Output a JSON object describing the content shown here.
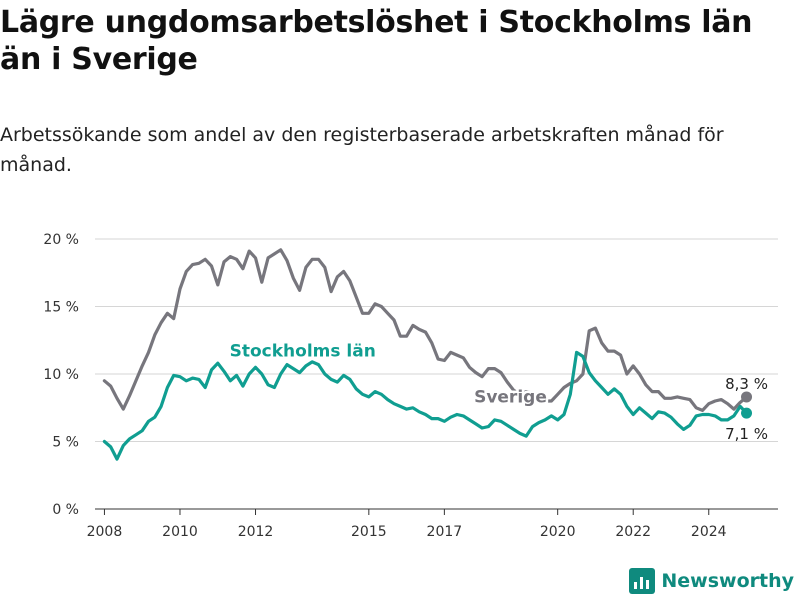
{
  "title": "Lägre ungdomsarbetslöshet i Stockholms län än i Sverige",
  "subtitle": "Arbetssökande som andel av den registerbaserade arbetskraften månad för månad.",
  "brand": {
    "name": "Newsworthy",
    "color": "#0f8a7e"
  },
  "chart_data": {
    "type": "line",
    "ylim": [
      0,
      20
    ],
    "yticks": [
      0,
      5,
      10,
      15,
      20
    ],
    "ytick_labels": [
      "0 %",
      "5 %",
      "10 %",
      "15 %",
      "20 %"
    ],
    "xlim": [
      "2007-10",
      "2025-11"
    ],
    "xtick_labels": [
      "2008",
      "2010",
      "2012",
      "2015",
      "2017",
      "2020",
      "2022",
      "2024"
    ],
    "xtick_dates": [
      "2008-01",
      "2010-01",
      "2012-01",
      "2015-01",
      "2017-01",
      "2020-01",
      "2022-01",
      "2024-01"
    ],
    "grid": true,
    "series": [
      {
        "name": "Sverige",
        "color": "#77767d",
        "end_label": "8,3 %",
        "x": [
          "2008-01",
          "2008-03",
          "2008-05",
          "2008-07",
          "2008-09",
          "2008-11",
          "2009-01",
          "2009-03",
          "2009-05",
          "2009-07",
          "2009-09",
          "2009-11",
          "2010-01",
          "2010-03",
          "2010-05",
          "2010-07",
          "2010-09",
          "2010-11",
          "2011-01",
          "2011-03",
          "2011-05",
          "2011-07",
          "2011-09",
          "2011-11",
          "2012-01",
          "2012-03",
          "2012-05",
          "2012-07",
          "2012-09",
          "2012-11",
          "2013-01",
          "2013-03",
          "2013-05",
          "2013-07",
          "2013-09",
          "2013-11",
          "2014-01",
          "2014-03",
          "2014-05",
          "2014-07",
          "2014-09",
          "2014-11",
          "2015-01",
          "2015-03",
          "2015-05",
          "2015-07",
          "2015-09",
          "2015-11",
          "2016-01",
          "2016-03",
          "2016-05",
          "2016-07",
          "2016-09",
          "2016-11",
          "2017-01",
          "2017-03",
          "2017-05",
          "2017-07",
          "2017-09",
          "2017-11",
          "2018-01",
          "2018-03",
          "2018-05",
          "2018-07",
          "2018-09",
          "2018-11",
          "2019-01",
          "2019-03",
          "2019-05",
          "2019-07",
          "2019-09",
          "2019-11",
          "2020-01",
          "2020-03",
          "2020-05",
          "2020-07",
          "2020-09",
          "2020-11",
          "2021-01",
          "2021-03",
          "2021-05",
          "2021-07",
          "2021-09",
          "2021-11",
          "2022-01",
          "2022-03",
          "2022-05",
          "2022-07",
          "2022-09",
          "2022-11",
          "2023-01",
          "2023-03",
          "2023-05",
          "2023-07",
          "2023-09",
          "2023-11",
          "2024-01",
          "2024-03",
          "2024-05",
          "2024-07",
          "2024-09",
          "2024-11",
          "2025-01"
        ],
        "y": [
          9.5,
          9.1,
          8.2,
          7.4,
          8.4,
          9.5,
          10.6,
          11.6,
          12.9,
          13.8,
          14.5,
          14.1,
          16.3,
          17.6,
          18.1,
          18.2,
          18.5,
          18.0,
          16.6,
          18.3,
          18.7,
          18.5,
          17.8,
          19.1,
          18.6,
          16.8,
          18.6,
          18.9,
          19.2,
          18.4,
          17.1,
          16.2,
          17.9,
          18.5,
          18.5,
          17.9,
          16.1,
          17.2,
          17.6,
          16.9,
          15.7,
          14.5,
          14.5,
          15.2,
          15.0,
          14.5,
          14.0,
          12.8,
          12.8,
          13.6,
          13.3,
          13.1,
          12.3,
          11.1,
          11.0,
          11.6,
          11.4,
          11.2,
          10.5,
          10.1,
          9.8,
          10.4,
          10.4,
          10.1,
          9.4,
          8.8,
          8.5,
          8.7,
          8.6,
          8.5,
          8.0,
          8.0,
          8.5,
          9.0,
          9.3,
          9.5,
          10.0,
          13.2,
          13.4,
          12.3,
          11.7,
          11.7,
          11.4,
          10.0,
          10.6,
          10.0,
          9.2,
          8.7,
          8.7,
          8.2,
          8.2,
          8.3,
          8.2,
          8.1,
          7.5,
          7.3,
          7.8,
          8.0,
          8.1,
          7.8,
          7.4,
          7.9,
          8.3
        ],
        "label": {
          "text": "Sverige",
          "date": "2018-10",
          "y": 7.9
        }
      },
      {
        "name": "Stockholms län",
        "color": "#109e91",
        "end_label": "7,1 %",
        "x": [
          "2008-01",
          "2008-03",
          "2008-05",
          "2008-07",
          "2008-09",
          "2008-11",
          "2009-01",
          "2009-03",
          "2009-05",
          "2009-07",
          "2009-09",
          "2009-11",
          "2010-01",
          "2010-03",
          "2010-05",
          "2010-07",
          "2010-09",
          "2010-11",
          "2011-01",
          "2011-03",
          "2011-05",
          "2011-07",
          "2011-09",
          "2011-11",
          "2012-01",
          "2012-03",
          "2012-05",
          "2012-07",
          "2012-09",
          "2012-11",
          "2013-01",
          "2013-03",
          "2013-05",
          "2013-07",
          "2013-09",
          "2013-11",
          "2014-01",
          "2014-03",
          "2014-05",
          "2014-07",
          "2014-09",
          "2014-11",
          "2015-01",
          "2015-03",
          "2015-05",
          "2015-07",
          "2015-09",
          "2015-11",
          "2016-01",
          "2016-03",
          "2016-05",
          "2016-07",
          "2016-09",
          "2016-11",
          "2017-01",
          "2017-03",
          "2017-05",
          "2017-07",
          "2017-09",
          "2017-11",
          "2018-01",
          "2018-03",
          "2018-05",
          "2018-07",
          "2018-09",
          "2018-11",
          "2019-01",
          "2019-03",
          "2019-05",
          "2019-07",
          "2019-09",
          "2019-11",
          "2020-01",
          "2020-03",
          "2020-05",
          "2020-07",
          "2020-09",
          "2020-11",
          "2021-01",
          "2021-03",
          "2021-05",
          "2021-07",
          "2021-09",
          "2021-11",
          "2022-01",
          "2022-03",
          "2022-05",
          "2022-07",
          "2022-09",
          "2022-11",
          "2023-01",
          "2023-03",
          "2023-05",
          "2023-07",
          "2023-09",
          "2023-11",
          "2024-01",
          "2024-03",
          "2024-05",
          "2024-07",
          "2024-09",
          "2024-11",
          "2025-01"
        ],
        "y": [
          5.0,
          4.6,
          3.7,
          4.7,
          5.2,
          5.5,
          5.8,
          6.5,
          6.8,
          7.6,
          9.0,
          9.9,
          9.8,
          9.5,
          9.7,
          9.6,
          9.0,
          10.3,
          10.8,
          10.2,
          9.5,
          9.9,
          9.1,
          10.0,
          10.5,
          10.0,
          9.2,
          9.0,
          10.0,
          10.7,
          10.4,
          10.1,
          10.6,
          10.9,
          10.7,
          10.0,
          9.6,
          9.4,
          9.9,
          9.6,
          8.9,
          8.5,
          8.3,
          8.7,
          8.5,
          8.1,
          7.8,
          7.6,
          7.4,
          7.5,
          7.2,
          7.0,
          6.7,
          6.7,
          6.5,
          6.8,
          7.0,
          6.9,
          6.6,
          6.3,
          6.0,
          6.1,
          6.6,
          6.5,
          6.2,
          5.9,
          5.6,
          5.4,
          6.1,
          6.4,
          6.6,
          6.9,
          6.6,
          7.0,
          8.5,
          11.6,
          11.3,
          10.1,
          9.5,
          9.0,
          8.5,
          8.9,
          8.5,
          7.6,
          7.0,
          7.5,
          7.1,
          6.7,
          7.2,
          7.1,
          6.8,
          6.3,
          5.9,
          6.2,
          6.9,
          7.0,
          7.0,
          6.9,
          6.6,
          6.6,
          6.9,
          7.6,
          7.1
        ],
        "label": {
          "text": "Stockholms län",
          "date": "2013-04",
          "y": 11.3
        }
      }
    ]
  }
}
